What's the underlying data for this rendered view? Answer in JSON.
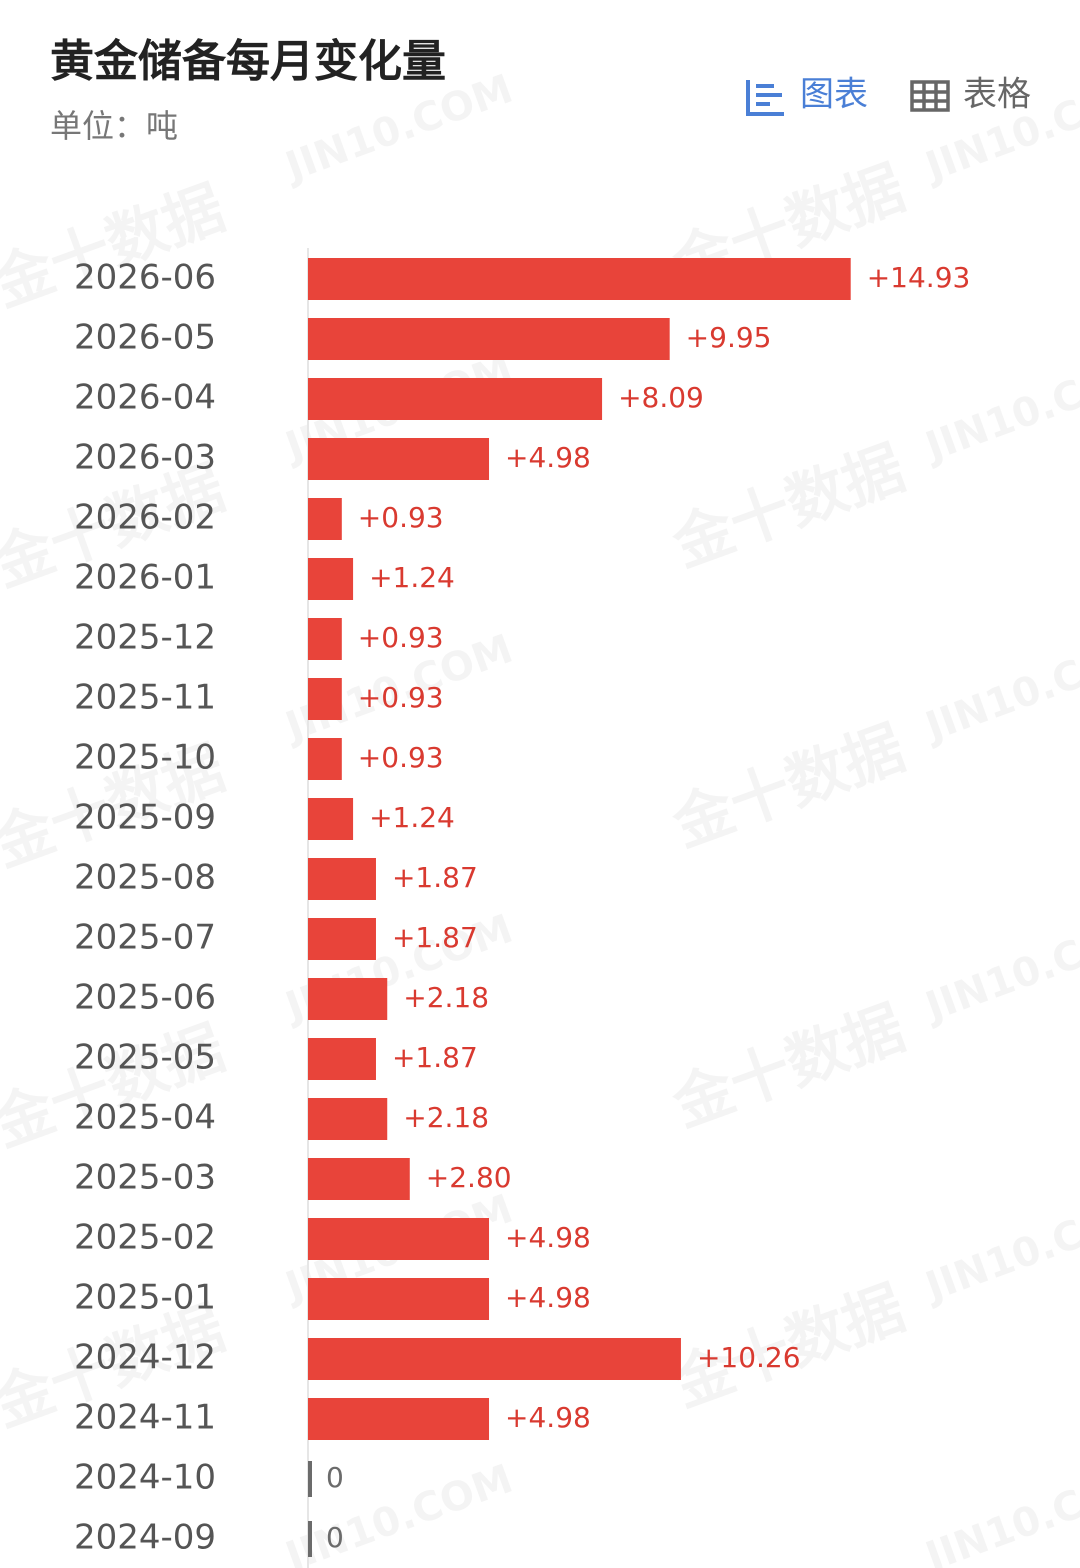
{
  "title": "黄金储备每月变化量",
  "subtitle": "单位：吨",
  "tabs": [
    "图表",
    "表格"
  ],
  "watermark": [
    "金十数据",
    "JIN10.COM"
  ],
  "chart_data": {
    "type": "bar",
    "orientation": "horizontal",
    "categories": [
      "2026-06",
      "2026-05",
      "2026-04",
      "2026-03",
      "2026-02",
      "2026-01",
      "2025-12",
      "2025-11",
      "2025-10",
      "2025-09",
      "2025-08",
      "2025-07",
      "2025-06",
      "2025-05",
      "2025-04",
      "2025-03",
      "2025-02",
      "2025-01",
      "2024-12",
      "2024-11",
      "2024-10",
      "2024-09"
    ],
    "values": [
      14.93,
      9.95,
      8.09,
      4.98,
      0.93,
      1.24,
      0.93,
      0.93,
      0.93,
      1.24,
      1.87,
      1.87,
      2.18,
      1.87,
      2.18,
      2.8,
      4.98,
      4.98,
      10.26,
      4.98,
      0,
      0
    ],
    "value_labels": [
      "+14.93",
      "+9.95",
      "+8.09",
      "+4.98",
      "+0.93",
      "+1.24",
      "+0.93",
      "+0.93",
      "+0.93",
      "+1.24",
      "+1.87",
      "+1.87",
      "+2.18",
      "+1.87",
      "+2.18",
      "+2.80",
      "+4.98",
      "+4.98",
      "+10.26",
      "+4.98",
      "0",
      "0"
    ],
    "color": "#e8443a",
    "label_color": "#d93a30",
    "zero_color": "#6b6b6b",
    "xlim": [
      0,
      20
    ]
  }
}
